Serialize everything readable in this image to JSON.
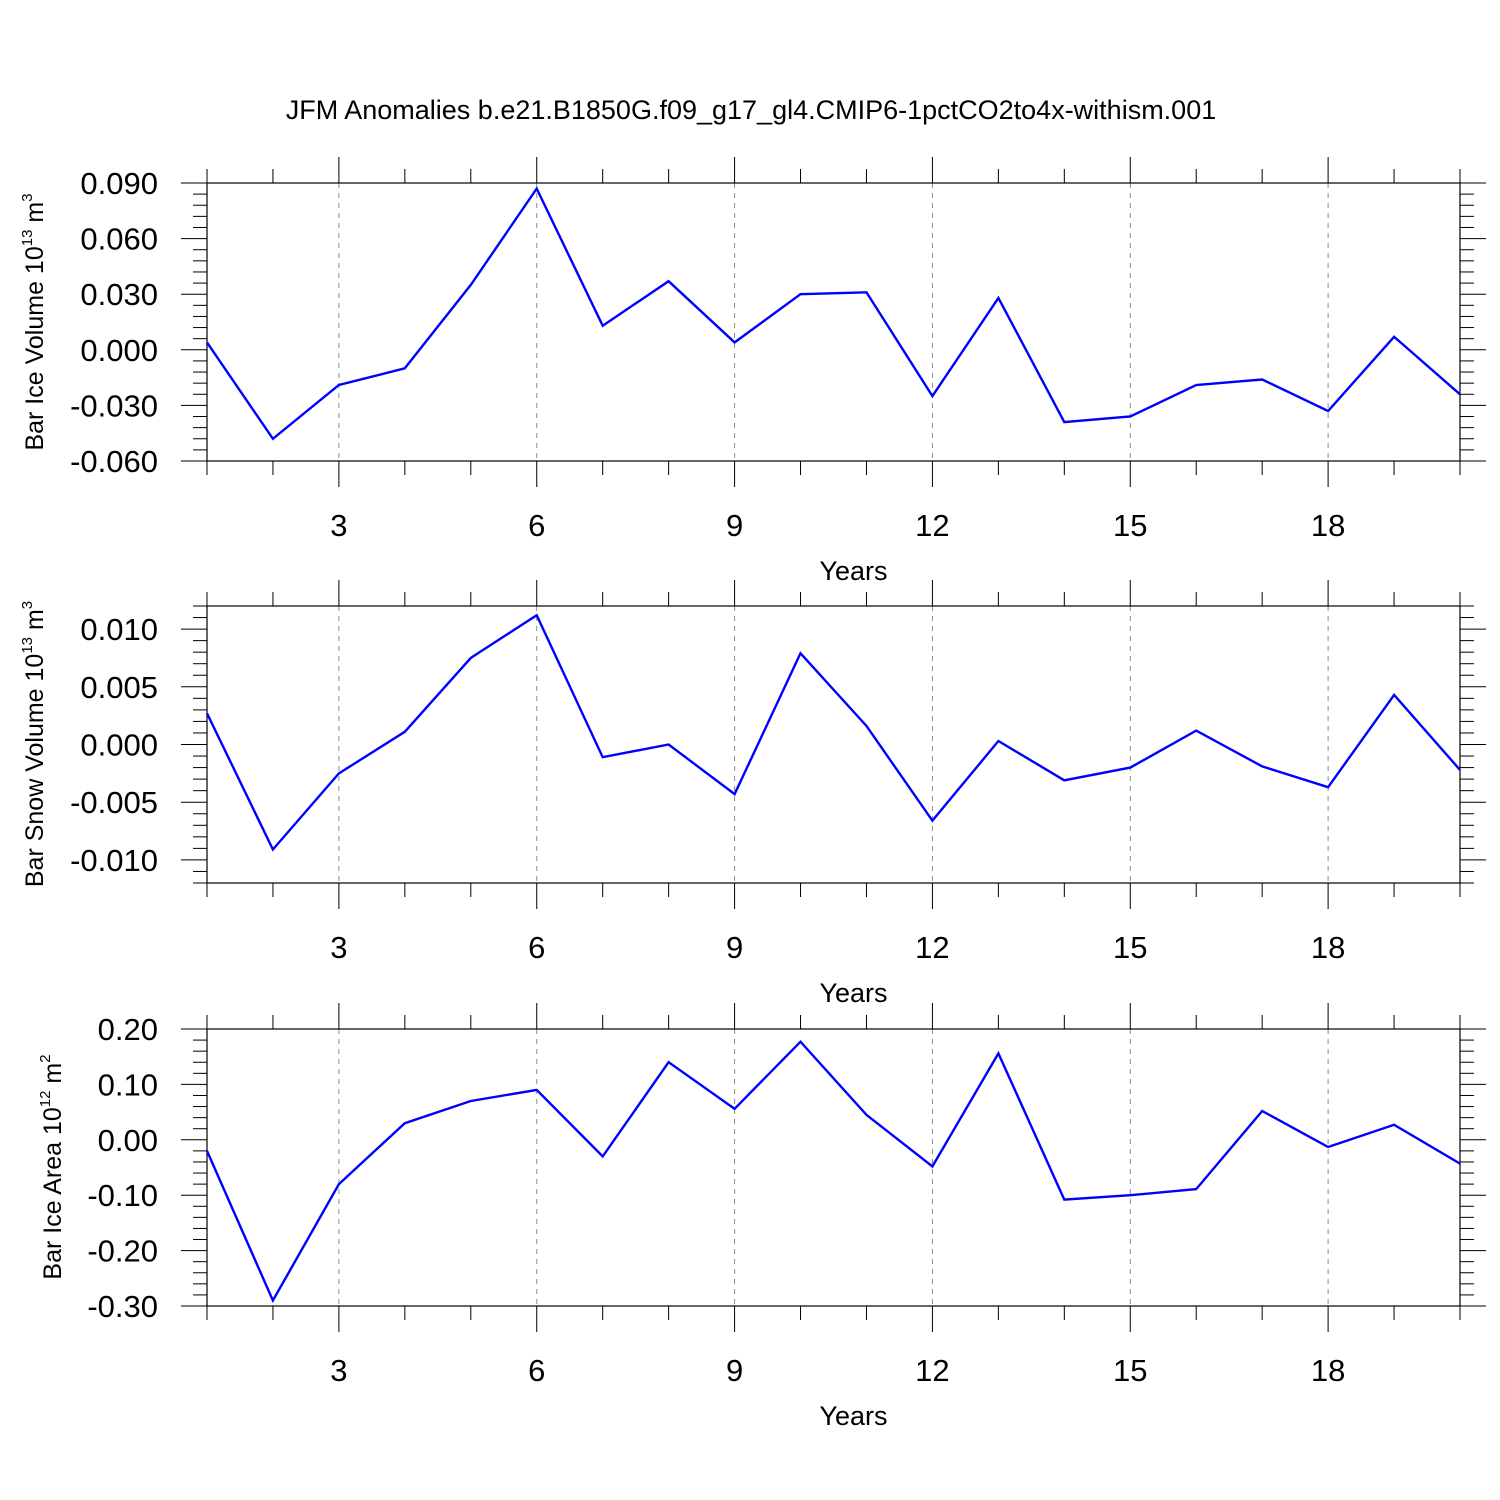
{
  "title": "JFM Anomalies b.e21.B1850G.f09_g17_gl4.CMIP6-1pctCO2to4x-withism.001",
  "colors": {
    "line": "#0000ff",
    "axes": "#000000",
    "grid": "#8c8c8c"
  },
  "chart_data": [
    {
      "type": "line",
      "xlabel": "Years",
      "ylabel": {
        "text": "Bar Ice Volume 10",
        "exponent": "13",
        "unit": "m",
        "unit_exponent": "3"
      },
      "xlim": [
        1,
        20
      ],
      "ylim": [
        -0.06,
        0.09
      ],
      "x_ticks": [
        3,
        6,
        9,
        12,
        15,
        18
      ],
      "x_tick_labels": [
        "3",
        "6",
        "9",
        "12",
        "15",
        "18"
      ],
      "y_ticks": [
        0.09,
        0.06,
        0.03,
        0.0,
        -0.03,
        -0.06
      ],
      "y_tick_labels": [
        "0.090",
        "0.060",
        "0.030",
        "0.000",
        "-0.030",
        "-0.060"
      ],
      "grid": "vertical dashed at major x ticks",
      "x": [
        1,
        2,
        3,
        4,
        5,
        6,
        7,
        8,
        9,
        10,
        11,
        12,
        13,
        14,
        15,
        16,
        17,
        18,
        19,
        20
      ],
      "values": [
        0.004,
        -0.048,
        -0.019,
        -0.01,
        0.035,
        0.087,
        0.013,
        0.037,
        0.004,
        0.03,
        0.031,
        -0.025,
        0.028,
        -0.039,
        -0.036,
        -0.019,
        -0.016,
        -0.033,
        0.007,
        -0.024
      ]
    },
    {
      "type": "line",
      "xlabel": "Years",
      "ylabel": {
        "text": "Bar Snow Volume 10",
        "exponent": "13",
        "unit": "m",
        "unit_exponent": "3"
      },
      "xlim": [
        1,
        20
      ],
      "ylim": [
        -0.012,
        0.012
      ],
      "x_ticks": [
        3,
        6,
        9,
        12,
        15,
        18
      ],
      "x_tick_labels": [
        "3",
        "6",
        "9",
        "12",
        "15",
        "18"
      ],
      "y_ticks": [
        0.01,
        0.005,
        0.0,
        -0.005,
        -0.01
      ],
      "y_tick_labels": [
        "0.010",
        "0.005",
        "0.000",
        "-0.005",
        "-0.010"
      ],
      "grid": "vertical dashed at major x ticks",
      "x": [
        1,
        2,
        3,
        4,
        5,
        6,
        7,
        8,
        9,
        10,
        11,
        12,
        13,
        14,
        15,
        16,
        17,
        18,
        19,
        20
      ],
      "values": [
        0.0027,
        -0.0091,
        -0.0025,
        0.0011,
        0.0075,
        0.0112,
        -0.0011,
        0.0,
        -0.0043,
        0.0079,
        0.0016,
        -0.0066,
        0.0003,
        -0.0031,
        -0.002,
        0.0012,
        -0.0019,
        -0.0037,
        0.0043,
        -0.0022
      ]
    },
    {
      "type": "line",
      "xlabel": "Years",
      "ylabel": {
        "text": "Bar Ice Area 10",
        "exponent": "12",
        "unit": "m",
        "unit_exponent": "2"
      },
      "xlim": [
        1,
        20
      ],
      "ylim": [
        -0.3,
        0.2
      ],
      "x_ticks": [
        3,
        6,
        9,
        12,
        15,
        18
      ],
      "x_tick_labels": [
        "3",
        "6",
        "9",
        "12",
        "15",
        "18"
      ],
      "y_ticks": [
        0.2,
        0.1,
        0.0,
        -0.1,
        -0.2,
        -0.3
      ],
      "y_tick_labels": [
        "0.20",
        "0.10",
        "0.00",
        "-0.10",
        "-0.20",
        "-0.30"
      ],
      "grid": "vertical dashed at major x ticks",
      "x": [
        1,
        2,
        3,
        4,
        5,
        6,
        7,
        8,
        9,
        10,
        11,
        12,
        13,
        14,
        15,
        16,
        17,
        18,
        19,
        20
      ],
      "values": [
        -0.02,
        -0.29,
        -0.08,
        0.03,
        0.07,
        0.09,
        -0.03,
        0.14,
        0.056,
        0.177,
        0.045,
        -0.048,
        0.156,
        -0.108,
        -0.1,
        -0.089,
        0.052,
        -0.013,
        0.027,
        -0.043
      ]
    }
  ]
}
